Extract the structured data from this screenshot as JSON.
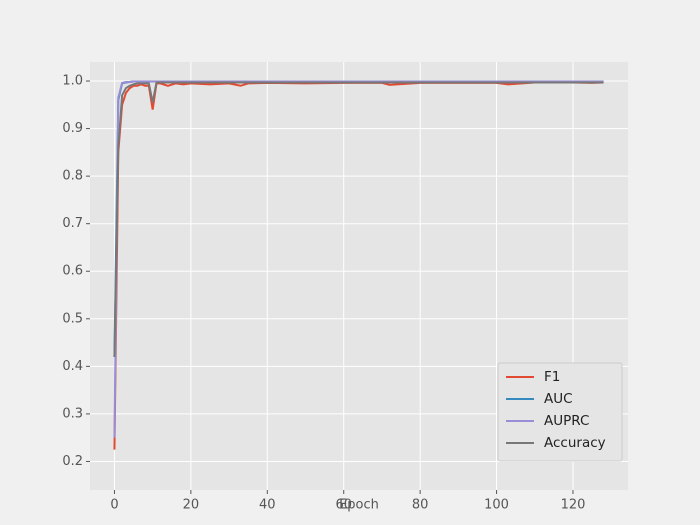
{
  "chart_data": {
    "type": "line",
    "xlabel": "Epoch",
    "x": [
      0,
      1,
      2,
      3,
      4,
      5,
      6,
      7,
      8,
      9,
      10,
      11,
      12,
      14,
      16,
      18,
      20,
      25,
      30,
      33,
      35,
      40,
      50,
      60,
      70,
      72,
      80,
      90,
      100,
      103,
      110,
      120,
      125,
      128
    ],
    "series": [
      {
        "name": "F1",
        "color": "#E24A33",
        "values": [
          0.225,
          0.85,
          0.95,
          0.975,
          0.985,
          0.99,
          0.99,
          0.993,
          0.99,
          0.99,
          0.94,
          0.995,
          0.995,
          0.99,
          0.995,
          0.993,
          0.995,
          0.993,
          0.995,
          0.99,
          0.995,
          0.996,
          0.995,
          0.996,
          0.996,
          0.992,
          0.996,
          0.996,
          0.996,
          0.993,
          0.997,
          0.997,
          0.996,
          0.997
        ]
      },
      {
        "name": "AUC",
        "color": "#348ABD",
        "values": [
          0.42,
          0.96,
          0.995,
          0.997,
          0.998,
          0.999,
          0.999,
          0.999,
          0.999,
          0.999,
          0.999,
          0.999,
          0.999,
          0.999,
          0.999,
          0.999,
          0.999,
          0.999,
          0.999,
          0.999,
          0.999,
          0.999,
          0.999,
          0.999,
          0.999,
          0.999,
          0.999,
          0.999,
          0.999,
          0.999,
          0.999,
          0.999,
          0.999,
          0.999
        ]
      },
      {
        "name": "AUPRC",
        "color": "#988ED5",
        "values": [
          0.25,
          0.965,
          0.996,
          0.998,
          0.998,
          0.999,
          0.999,
          0.999,
          0.999,
          0.999,
          0.999,
          0.999,
          0.999,
          0.999,
          0.999,
          0.999,
          0.999,
          0.999,
          0.999,
          0.999,
          0.999,
          0.999,
          0.999,
          0.999,
          0.999,
          0.999,
          0.999,
          0.999,
          0.999,
          0.999,
          0.999,
          0.999,
          0.999,
          0.999
        ]
      },
      {
        "name": "Accuracy",
        "color": "#777777",
        "values": [
          0.42,
          0.86,
          0.97,
          0.985,
          0.99,
          0.993,
          0.995,
          0.995,
          0.995,
          0.995,
          0.955,
          0.997,
          0.997,
          0.997,
          0.997,
          0.997,
          0.997,
          0.997,
          0.997,
          0.997,
          0.997,
          0.997,
          0.997,
          0.997,
          0.997,
          0.997,
          0.997,
          0.997,
          0.997,
          0.997,
          0.997,
          0.997,
          0.997,
          0.997
        ]
      }
    ],
    "xlim": [
      -6.4,
      134.4
    ],
    "xticks": [
      0,
      20,
      40,
      60,
      80,
      100,
      120
    ],
    "ylim": [
      0.14,
      1.04
    ],
    "yticks": [
      0.2,
      0.3,
      0.4,
      0.5,
      0.6,
      0.7,
      0.8,
      0.9,
      {
        "value": 1,
        "label": "1.0"
      }
    ],
    "grid": true,
    "legend": "lower right"
  }
}
